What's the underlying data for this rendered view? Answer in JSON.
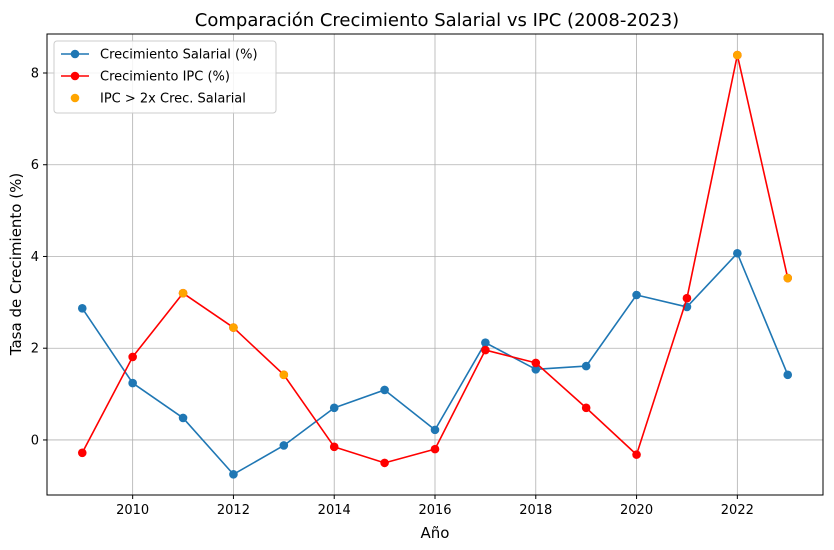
{
  "chart_data": {
    "type": "line",
    "title": "Comparación Crecimiento Salarial vs IPC (2008-2023)",
    "xlabel": "Año",
    "ylabel": "Tasa de Crecimiento (%)",
    "x": [
      2009,
      2010,
      2011,
      2012,
      2013,
      2014,
      2015,
      2016,
      2017,
      2018,
      2019,
      2020,
      2021,
      2022,
      2023
    ],
    "xlim": [
      2008.3,
      2023.7
    ],
    "ylim": [
      -1.2,
      8.85
    ],
    "xticks": [
      2010,
      2012,
      2014,
      2016,
      2018,
      2020,
      2022
    ],
    "yticks": [
      0,
      2,
      4,
      6,
      8
    ],
    "grid": true,
    "legend_position": "top-left",
    "series": [
      {
        "name": "Crecimiento Salarial (%)",
        "color": "#1f77b4",
        "marker": "circle",
        "line": true,
        "values": [
          2.87,
          1.24,
          0.48,
          -0.75,
          -0.12,
          0.7,
          1.09,
          0.22,
          2.12,
          1.54,
          1.61,
          3.16,
          2.9,
          4.07,
          1.42
        ]
      },
      {
        "name": "Crecimiento IPC (%)",
        "color": "#ff0000",
        "marker": "circle",
        "line": true,
        "values": [
          -0.28,
          1.81,
          3.2,
          2.45,
          1.42,
          -0.15,
          -0.5,
          -0.2,
          1.96,
          1.68,
          0.7,
          -0.32,
          3.09,
          8.39,
          3.53
        ]
      },
      {
        "name": "IPC > 2x Crec. Salarial",
        "color": "#ffa500",
        "marker": "circle",
        "line": false,
        "x": [
          2011,
          2012,
          2013,
          2022,
          2023
        ],
        "values": [
          3.2,
          2.45,
          1.42,
          8.39,
          3.53
        ]
      }
    ]
  }
}
